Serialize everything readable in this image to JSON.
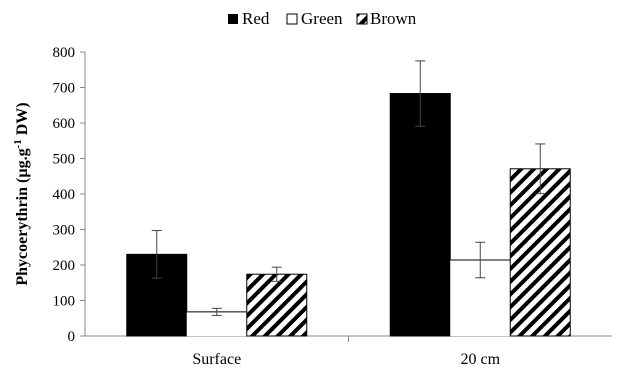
{
  "chart_data": {
    "type": "bar",
    "categories": [
      "Surface",
      "20 cm"
    ],
    "series": [
      {
        "name": "Red",
        "values": [
          230,
          683
        ],
        "errors": [
          67,
          92
        ],
        "fill": "solid-black"
      },
      {
        "name": "Green",
        "values": [
          68,
          214
        ],
        "errors": [
          10,
          50
        ],
        "fill": "white"
      },
      {
        "name": "Brown",
        "values": [
          174,
          471
        ],
        "errors": [
          20,
          70
        ],
        "fill": "diagonal-hatch"
      }
    ],
    "ylabel_main": "Phycoerythrin (µg.g",
    "ylabel_sup": "-1",
    "ylabel_end": " DW)",
    "xlabel": "",
    "ylim": [
      0,
      800
    ],
    "yticks": [
      "0",
      "100",
      "200",
      "300",
      "400",
      "500",
      "600",
      "700",
      "800"
    ],
    "grid": false,
    "legend_position": "top-center",
    "colors": {
      "bar_fill": "#000000",
      "bar_empty": "#ffffff",
      "axis": "#888888",
      "error_bar": "#444444"
    }
  }
}
